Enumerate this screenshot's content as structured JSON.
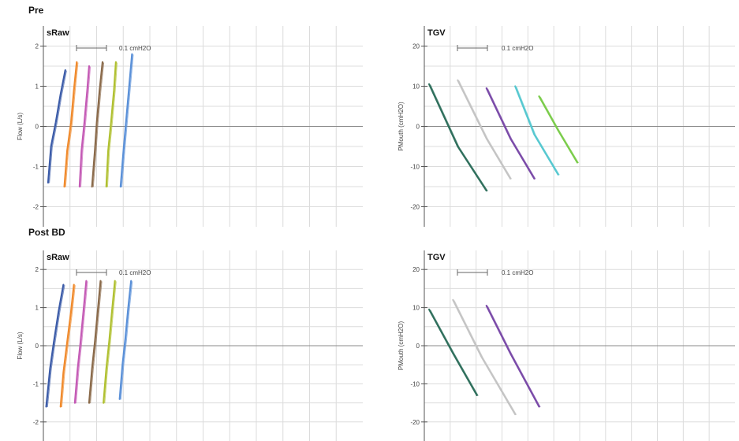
{
  "sections": [
    {
      "title": "Pre"
    },
    {
      "title": "Post BD"
    }
  ],
  "chart_data": [
    {
      "type": "line",
      "section": "Pre",
      "title": "sRaw",
      "scale_label": "0.1 cmH2O",
      "ylabel": "Flow (L/s)",
      "xlabel": "",
      "ylim": [
        -2.5,
        2.5
      ],
      "yticks": [
        2,
        1,
        0,
        -1,
        -2
      ],
      "grid": true,
      "series": [
        {
          "color": "#3b5ba8",
          "values": [
            [
              -0.3,
              -1.4
            ],
            [
              -0.27,
              -0.5
            ],
            [
              -0.22,
              0.1
            ],
            [
              -0.17,
              0.8
            ],
            [
              -0.12,
              1.4
            ]
          ]
        },
        {
          "color": "#f08a2c",
          "values": [
            [
              -0.13,
              -1.5
            ],
            [
              -0.1,
              -0.6
            ],
            [
              -0.06,
              0.1
            ],
            [
              -0.03,
              0.9
            ],
            [
              0.0,
              1.6
            ]
          ]
        },
        {
          "color": "#c45ab5",
          "values": [
            [
              0.03,
              -1.5
            ],
            [
              0.05,
              -0.6
            ],
            [
              0.08,
              0.1
            ],
            [
              0.11,
              0.9
            ],
            [
              0.13,
              1.5
            ]
          ]
        },
        {
          "color": "#8a6a4a",
          "values": [
            [
              0.16,
              -1.5
            ],
            [
              0.19,
              -0.6
            ],
            [
              0.21,
              0.1
            ],
            [
              0.24,
              0.9
            ],
            [
              0.27,
              1.6
            ]
          ]
        },
        {
          "color": "#b0c030",
          "values": [
            [
              0.31,
              -1.5
            ],
            [
              0.33,
              -0.6
            ],
            [
              0.36,
              0.1
            ],
            [
              0.39,
              0.9
            ],
            [
              0.41,
              1.6
            ]
          ]
        },
        {
          "color": "#5a90d8",
          "values": [
            [
              0.46,
              -1.5
            ],
            [
              0.49,
              -0.6
            ],
            [
              0.52,
              0.2
            ],
            [
              0.55,
              1.0
            ],
            [
              0.58,
              1.8
            ]
          ]
        }
      ]
    },
    {
      "type": "line",
      "section": "Pre",
      "title": "TGV",
      "scale_label": "0.1 cmH2O",
      "ylabel": "PMouth (cmH2O)",
      "xlabel": "",
      "ylim": [
        -25,
        25
      ],
      "yticks": [
        20,
        10,
        0,
        -10,
        -20
      ],
      "grid": true,
      "series": [
        {
          "color": "#2f6f5c",
          "values": [
            [
              0.0,
              10.5
            ],
            [
              0.3,
              -5
            ],
            [
              0.6,
              -16
            ]
          ]
        },
        {
          "color": "#c4c4c4",
          "values": [
            [
              0.3,
              11.5
            ],
            [
              0.6,
              -3
            ],
            [
              0.85,
              -13
            ]
          ]
        },
        {
          "color": "#7a4aa8",
          "values": [
            [
              0.6,
              9.5
            ],
            [
              0.85,
              -3
            ],
            [
              1.1,
              -13
            ]
          ]
        },
        {
          "color": "#56c8d0",
          "values": [
            [
              0.9,
              10
            ],
            [
              1.1,
              -2
            ],
            [
              1.35,
              -12
            ]
          ]
        },
        {
          "color": "#7acc4a",
          "values": [
            [
              1.15,
              7.5
            ],
            [
              1.35,
              -1
            ],
            [
              1.55,
              -9
            ]
          ]
        }
      ]
    },
    {
      "type": "line",
      "section": "Post BD",
      "title": "sRaw",
      "scale_label": "0.1 cmH2O",
      "ylabel": "Flow (L/s)",
      "xlabel": "",
      "ylim": [
        -2.5,
        2.5
      ],
      "yticks": [
        2,
        1,
        0,
        -1,
        -2
      ],
      "grid": true,
      "series": [
        {
          "color": "#3b5ba8",
          "values": [
            [
              -0.32,
              -1.6
            ],
            [
              -0.28,
              -0.6
            ],
            [
              -0.24,
              0.1
            ],
            [
              -0.19,
              0.9
            ],
            [
              -0.14,
              1.6
            ]
          ]
        },
        {
          "color": "#f08a2c",
          "values": [
            [
              -0.17,
              -1.6
            ],
            [
              -0.14,
              -0.7
            ],
            [
              -0.1,
              0.1
            ],
            [
              -0.06,
              0.9
            ],
            [
              -0.03,
              1.6
            ]
          ]
        },
        {
          "color": "#c45ab5",
          "values": [
            [
              -0.02,
              -1.5
            ],
            [
              0.01,
              -0.6
            ],
            [
              0.04,
              0.1
            ],
            [
              0.07,
              0.9
            ],
            [
              0.1,
              1.7
            ]
          ]
        },
        {
          "color": "#8a6a4a",
          "values": [
            [
              0.13,
              -1.5
            ],
            [
              0.16,
              -0.6
            ],
            [
              0.19,
              0.1
            ],
            [
              0.22,
              0.9
            ],
            [
              0.25,
              1.7
            ]
          ]
        },
        {
          "color": "#b0c030",
          "values": [
            [
              0.28,
              -1.5
            ],
            [
              0.31,
              -0.6
            ],
            [
              0.34,
              0.1
            ],
            [
              0.37,
              0.9
            ],
            [
              0.4,
              1.7
            ]
          ]
        },
        {
          "color": "#5a90d8",
          "values": [
            [
              0.45,
              -1.4
            ],
            [
              0.48,
              -0.5
            ],
            [
              0.51,
              0.2
            ],
            [
              0.54,
              1.0
            ],
            [
              0.57,
              1.7
            ]
          ]
        }
      ]
    },
    {
      "type": "line",
      "section": "Post BD",
      "title": "TGV",
      "scale_label": "0.1 cmH2O",
      "ylabel": "PMouth (cmH2O)",
      "xlabel": "",
      "ylim": [
        -25,
        25
      ],
      "yticks": [
        20,
        10,
        0,
        -10,
        -20
      ],
      "grid": true,
      "series": [
        {
          "color": "#2f6f5c",
          "values": [
            [
              0.0,
              9.5
            ],
            [
              0.25,
              -2
            ],
            [
              0.5,
              -13
            ]
          ]
        },
        {
          "color": "#c4c4c4",
          "values": [
            [
              0.25,
              12
            ],
            [
              0.55,
              -3
            ],
            [
              0.9,
              -18
            ]
          ]
        },
        {
          "color": "#7a4aa8",
          "values": [
            [
              0.6,
              10.5
            ],
            [
              0.85,
              -2
            ],
            [
              1.15,
              -16
            ]
          ]
        }
      ]
    }
  ]
}
